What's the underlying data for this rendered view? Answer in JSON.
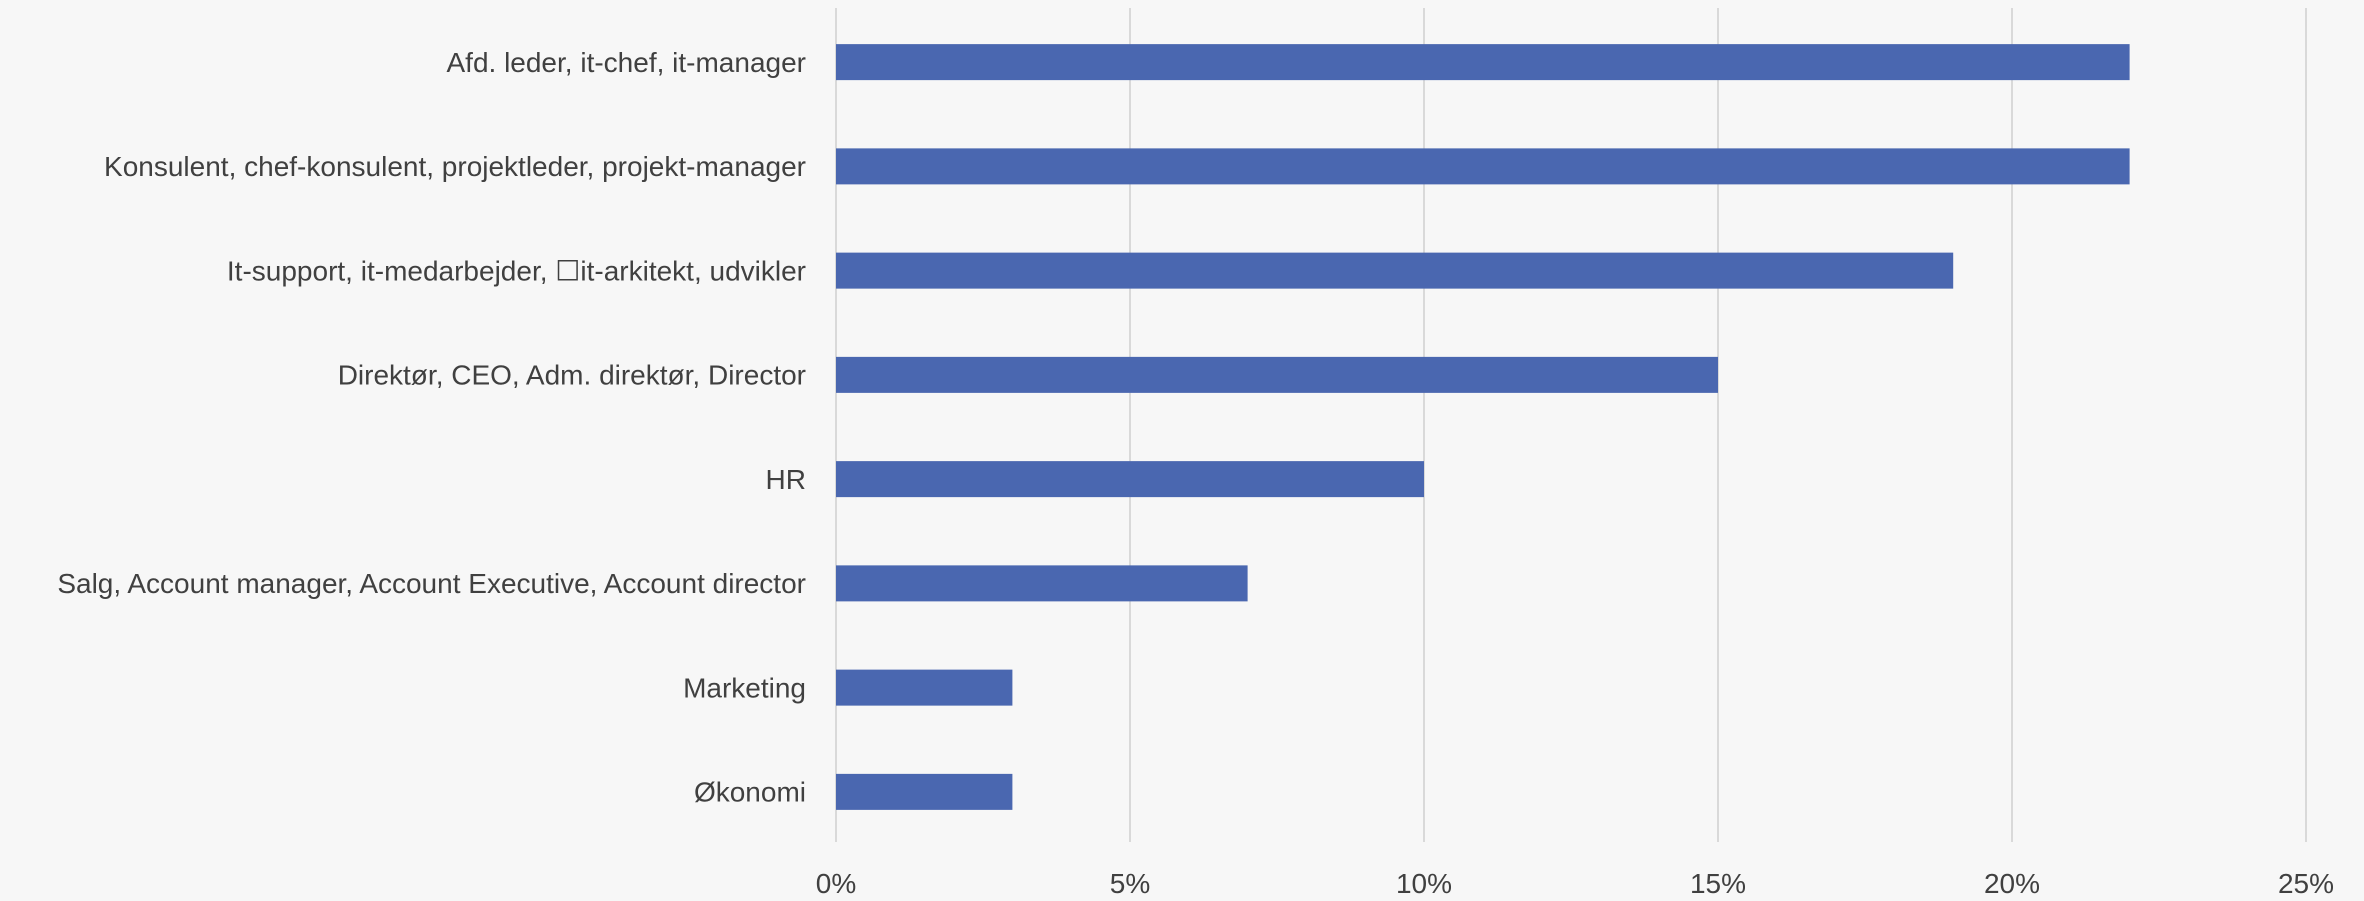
{
  "chart_data": {
    "type": "bar",
    "orientation": "horizontal",
    "categories": [
      "Afd. leder, it-chef, it-manager",
      "Konsulent, chef-konsulent, projektleder, projekt-manager",
      "It-support, it-medarbejder, ☐it-arkitekt, udvikler",
      "Direktør, CEO, Adm. direktør, Director",
      "HR",
      "Salg, Account manager, Account Executive, Account director",
      "Marketing",
      "Økonomi"
    ],
    "values": [
      22,
      22,
      19,
      15,
      10,
      7,
      3,
      3
    ],
    "unit": "%",
    "xlim": [
      0,
      25
    ],
    "xticks": [
      0,
      5,
      10,
      15,
      20,
      25
    ],
    "xtick_labels": [
      "0%",
      "5%",
      "10%",
      "15%",
      "20%",
      "25%"
    ],
    "title": "",
    "xlabel": "",
    "ylabel": "",
    "grid": "vertical",
    "legend": "none"
  },
  "colors": {
    "bar": "#4a67b0",
    "grid": "#d9d9d9",
    "text": "#404040",
    "background": "#f7f7f7"
  }
}
